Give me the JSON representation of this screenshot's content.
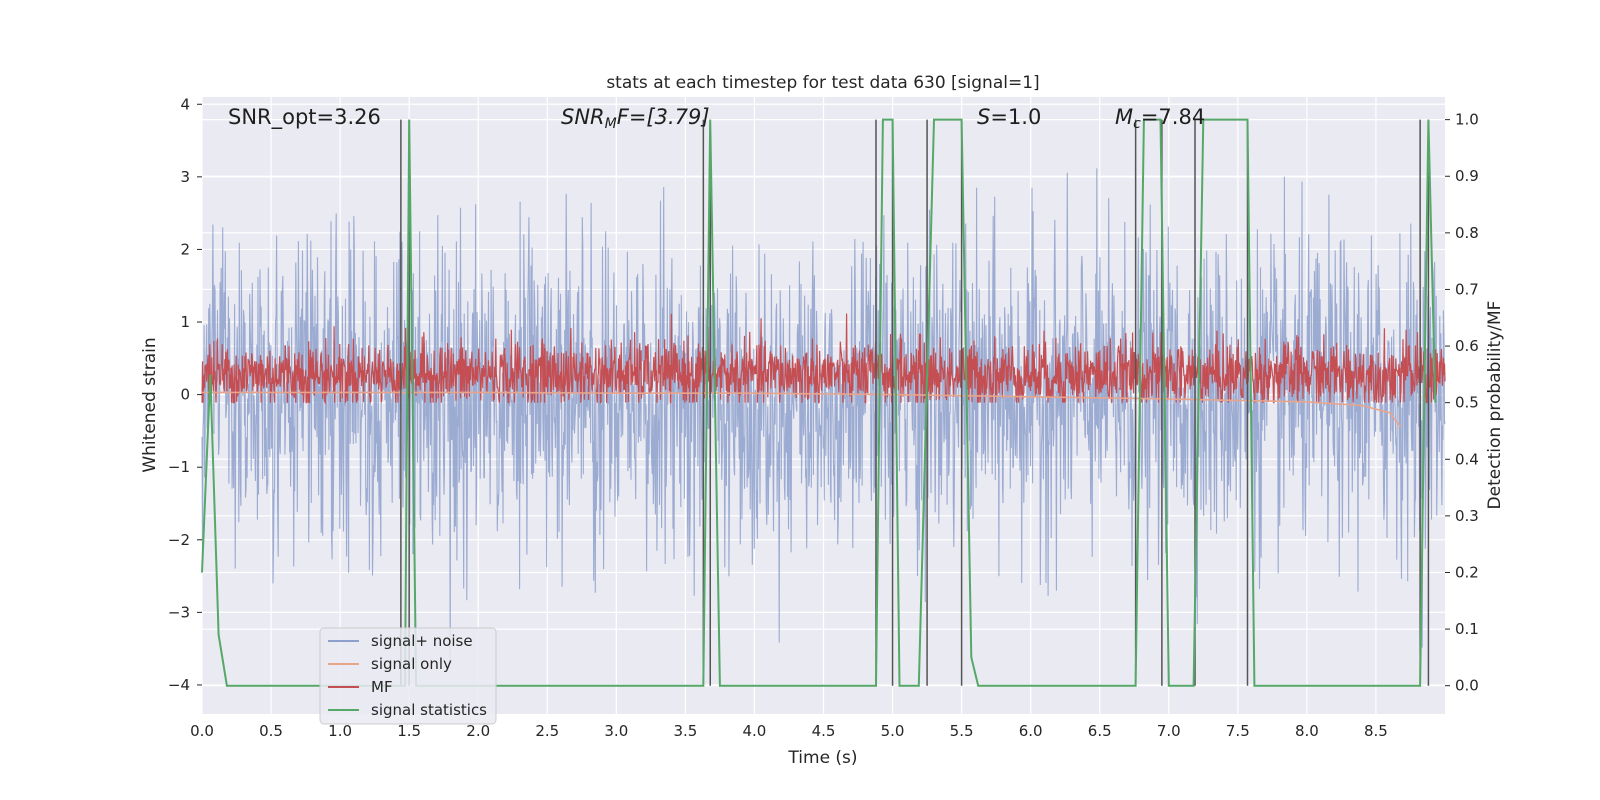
{
  "chart_data": {
    "type": "line",
    "title": "stats at each timestep for test data 630 [signal=1]",
    "xlabel": "Time (s)",
    "ylabel": "Whitened strain",
    "y2label": "Detection probability/MF",
    "xlim": [
      0,
      9.0
    ],
    "ylim": [
      -4.4,
      4.1
    ],
    "y2lim": [
      -0.05,
      1.04
    ],
    "xticks": [
      "0.0",
      "0.5",
      "1.0",
      "1.5",
      "2.0",
      "2.5",
      "3.0",
      "3.5",
      "4.0",
      "4.5",
      "5.0",
      "5.5",
      "6.0",
      "6.5",
      "7.0",
      "7.5",
      "8.0",
      "8.5"
    ],
    "yticks": [
      "4",
      "3",
      "2",
      "1",
      "0",
      "−1",
      "−2",
      "−3",
      "−4"
    ],
    "y2ticks": [
      "1.0",
      "0.9",
      "0.8",
      "0.7",
      "0.6",
      "0.5",
      "0.4",
      "0.3",
      "0.2",
      "0.1",
      "0.0"
    ],
    "grid": true,
    "legend_position": "lower-left",
    "annotations": {
      "snr_opt": "SNR_opt=3.26",
      "snr_mf_main": "SNR",
      "snr_mf_sub": "M",
      "snr_mf_rest": "F=[3.79]",
      "s_main": "S",
      "s_rest": "=1.0",
      "mc_main": "M",
      "mc_sub": "c",
      "mc_rest": "=7.84"
    },
    "series": [
      {
        "name": "signal+ noise",
        "color": "#8da0cb",
        "note_amplitude_range": [
          -3.5,
          3.3
        ]
      },
      {
        "name": "signal only",
        "color": "#e8a58c",
        "points": [
          [
            0,
            0.03
          ],
          [
            1,
            0.03
          ],
          [
            2,
            0.03
          ],
          [
            3,
            0.02
          ],
          [
            4,
            0.02
          ],
          [
            5,
            0.0
          ],
          [
            6,
            -0.03
          ],
          [
            7,
            -0.06
          ],
          [
            7.5,
            -0.08
          ],
          [
            8,
            -0.1
          ],
          [
            8.4,
            -0.15
          ],
          [
            8.6,
            -0.25
          ],
          [
            8.68,
            -0.45
          ]
        ]
      },
      {
        "name": "MF",
        "color": "#c44e52",
        "baseline": 0.55,
        "band": [
          0.52,
          0.64
        ]
      },
      {
        "name": "signal statistics",
        "color": "#55a868",
        "points": [
          [
            0.0,
            0.2
          ],
          [
            0.06,
            0.55
          ],
          [
            0.12,
            0.09
          ],
          [
            0.18,
            0.0
          ],
          [
            1.47,
            0.0
          ],
          [
            1.5,
            1.0
          ],
          [
            1.55,
            0.0
          ],
          [
            3.63,
            0.0
          ],
          [
            3.68,
            1.0
          ],
          [
            3.75,
            0.0
          ],
          [
            4.88,
            0.0
          ],
          [
            4.93,
            1.0
          ],
          [
            5.0,
            1.0
          ],
          [
            5.05,
            0.0
          ],
          [
            5.19,
            0.0
          ],
          [
            5.3,
            1.0
          ],
          [
            5.5,
            1.0
          ],
          [
            5.57,
            0.05
          ],
          [
            5.62,
            0.0
          ],
          [
            6.76,
            0.0
          ],
          [
            6.82,
            1.0
          ],
          [
            6.94,
            1.0
          ],
          [
            7.0,
            0.0
          ],
          [
            7.18,
            0.0
          ],
          [
            7.25,
            1.0
          ],
          [
            7.57,
            1.0
          ],
          [
            7.62,
            0.0
          ],
          [
            8.82,
            0.0
          ],
          [
            8.88,
            1.0
          ],
          [
            8.93,
            0.5
          ]
        ]
      }
    ],
    "vertical_lines": [
      1.44,
      1.5,
      3.63,
      3.68,
      4.88,
      5.0,
      5.25,
      5.5,
      6.76,
      6.95,
      7.19,
      7.57,
      8.82,
      8.88
    ]
  }
}
